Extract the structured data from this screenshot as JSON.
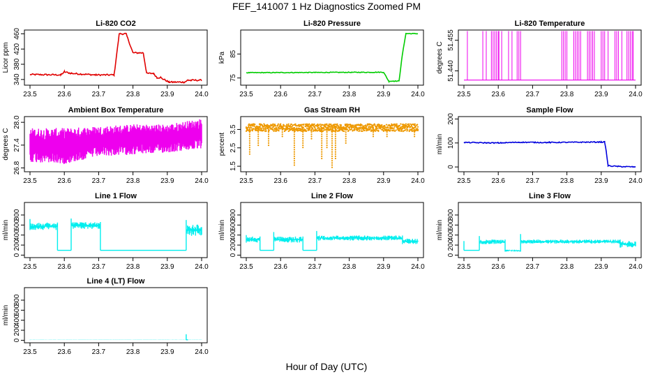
{
  "figure": {
    "title": "FEF_141007  1 Hz Diagnostics Zoomed PM",
    "xlabel": "Hour of Day (UTC)"
  },
  "chart_data": [
    {
      "type": "line",
      "title": "Li-820 CO2",
      "ylabel": "Licor ppm",
      "color": "#e00000",
      "xlim": [
        23.5,
        24.0
      ],
      "ylim": [
        325,
        470
      ],
      "xticks": [
        "23.5",
        "23.6",
        "23.7",
        "23.8",
        "23.9",
        "24.0"
      ],
      "yticks": [
        "340",
        "380",
        "420",
        "460"
      ],
      "style": "step",
      "noise": 2,
      "x": [
        23.5,
        23.59,
        23.6,
        23.62,
        23.69,
        23.745,
        23.76,
        23.78,
        23.8,
        23.83,
        23.84,
        23.86,
        23.87,
        23.88,
        23.905,
        23.95,
        23.96,
        23.97,
        24.0
      ],
      "y": [
        353,
        352,
        360,
        356,
        352,
        352,
        460,
        460,
        410,
        410,
        356,
        356,
        345,
        345,
        333,
        333,
        338,
        338,
        338
      ]
    },
    {
      "type": "line",
      "title": "Li-820 Pressure",
      "ylabel": "kPa",
      "color": "#00cc00",
      "xlim": [
        23.5,
        24.0
      ],
      "ylim": [
        72,
        95
      ],
      "xticks": [
        "23.5",
        "23.6",
        "23.7",
        "23.8",
        "23.9",
        "24.0"
      ],
      "yticks": [
        "75",
        "85"
      ],
      "style": "step",
      "noise": 0.15,
      "x": [
        23.5,
        23.7,
        23.9,
        23.915,
        23.93,
        23.945,
        23.955,
        23.965,
        24.0
      ],
      "y": [
        77.2,
        77.3,
        77.4,
        73.7,
        73.7,
        73.7,
        85.0,
        93.5,
        93.5
      ]
    },
    {
      "type": "line",
      "title": "Li-820 Temperature",
      "ylabel": "degrees C",
      "color": "#ee00ee",
      "xlim": [
        23.5,
        24.0
      ],
      "ylim": [
        51.433,
        51.46
      ],
      "xticks": [
        "23.5",
        "23.6",
        "23.7",
        "23.8",
        "23.9",
        "24.0"
      ],
      "yticks": [
        "51.440",
        "51.455"
      ],
      "style": "binary",
      "low": 51.4355,
      "high": 51.4595,
      "x": [
        23.51,
        23.555,
        23.565,
        23.58,
        23.585,
        23.59,
        23.595,
        23.6,
        23.602,
        23.61,
        23.63,
        23.64,
        23.655,
        23.66,
        23.665,
        23.785,
        23.79,
        23.795,
        23.8,
        23.82,
        23.825,
        23.83,
        23.835,
        23.84,
        23.86,
        23.865,
        23.87,
        23.875,
        23.88,
        23.9,
        23.905,
        23.91,
        23.92,
        23.94,
        23.945,
        23.95,
        23.96,
        23.975,
        23.98,
        23.985,
        23.99,
        23.993
      ]
    },
    {
      "type": "line",
      "title": "Ambient Box Temperature",
      "ylabel": "degrees C",
      "color": "#ee00ee",
      "xlim": [
        23.5,
        24.0
      ],
      "ylim": [
        26.7,
        28.15
      ],
      "xticks": [
        "23.5",
        "23.6",
        "23.7",
        "23.8",
        "23.9",
        "24.0"
      ],
      "yticks": [
        "26.8",
        "27.4",
        "28.0"
      ],
      "style": "band",
      "x": [
        23.5,
        23.6,
        23.7,
        23.8,
        23.9,
        24.0
      ],
      "ymin": [
        26.95,
        26.9,
        27.1,
        27.15,
        27.2,
        27.3
      ],
      "ymax": [
        27.85,
        27.85,
        27.9,
        27.95,
        27.95,
        28.1
      ]
    },
    {
      "type": "scatter",
      "title": "Gas Stream RH",
      "ylabel": "percent",
      "color": "#ee9900",
      "xlim": [
        23.5,
        24.0
      ],
      "ylim": [
        1.2,
        4.2
      ],
      "xticks": [
        "23.5",
        "23.6",
        "23.7",
        "23.8",
        "23.9",
        "24.0"
      ],
      "yticks": [
        "1.5",
        "2.5",
        "3.5"
      ],
      "style": "dots",
      "base": 3.6,
      "spread": 0.2,
      "dips_x": [
        23.51,
        23.535,
        23.565,
        23.605,
        23.64,
        23.665,
        23.69,
        23.72,
        23.735,
        23.75,
        23.76,
        23.79,
        23.87,
        23.91,
        23.99
      ],
      "dips_y": [
        2.1,
        2.6,
        2.6,
        3.1,
        1.5,
        2.4,
        2.9,
        1.8,
        2.5,
        1.4,
        1.8,
        2.7,
        3.0,
        3.0,
        3.0
      ]
    },
    {
      "type": "line",
      "title": "Sample Flow",
      "ylabel": "ml/min",
      "color": "#0000dd",
      "xlim": [
        23.5,
        24.0
      ],
      "ylim": [
        -20,
        210
      ],
      "xticks": [
        "23.5",
        "23.6",
        "23.7",
        "23.8",
        "23.9",
        "24.0"
      ],
      "yticks": [
        "0",
        "100",
        "200"
      ],
      "style": "step",
      "noise": 2,
      "x": [
        23.5,
        23.6,
        23.66,
        23.75,
        23.9,
        23.91,
        23.915,
        23.92,
        23.95,
        24.0
      ],
      "y": [
        102,
        100,
        103,
        102,
        104,
        104,
        60,
        5,
        2,
        0
      ]
    },
    {
      "type": "line",
      "title": "Line 1 Flow",
      "ylabel": "ml/min",
      "color": "#00eeee",
      "xlim": [
        23.5,
        24.0
      ],
      "ylim": [
        -50,
        1050
      ],
      "xticks": [
        "23.5",
        "23.6",
        "23.7",
        "23.8",
        "23.9",
        "24.0"
      ],
      "yticks": [
        "0",
        "200",
        "400",
        "600",
        "800"
      ],
      "style": "segments",
      "segments": [
        {
          "x0": 23.5,
          "x1": 23.58,
          "lo": 500,
          "hi": 650,
          "spike": 720
        },
        {
          "x0": 23.58,
          "x1": 23.62,
          "lo": 95,
          "hi": 95,
          "spike": 95
        },
        {
          "x0": 23.62,
          "x1": 23.705,
          "lo": 520,
          "hi": 660,
          "spike": 730
        },
        {
          "x0": 23.705,
          "x1": 23.955,
          "lo": 95,
          "hi": 95,
          "spike": 95
        },
        {
          "x0": 23.955,
          "x1": 24.0,
          "lo": 380,
          "hi": 620,
          "spike": 700
        }
      ]
    },
    {
      "type": "line",
      "title": "Line 2 Flow",
      "ylabel": "ml/min",
      "color": "#00eeee",
      "xlim": [
        23.5,
        24.0
      ],
      "ylim": [
        -50,
        1050
      ],
      "xticks": [
        "23.5",
        "23.6",
        "23.7",
        "23.8",
        "23.9",
        "24.0"
      ],
      "yticks": [
        "0",
        "200",
        "400",
        "600",
        "800"
      ],
      "style": "segments",
      "segments": [
        {
          "x0": 23.5,
          "x1": 23.54,
          "lo": 250,
          "hi": 370,
          "spike": 400
        },
        {
          "x0": 23.54,
          "x1": 23.58,
          "lo": 95,
          "hi": 95,
          "spike": 95
        },
        {
          "x0": 23.58,
          "x1": 23.665,
          "lo": 250,
          "hi": 370,
          "spike": 460
        },
        {
          "x0": 23.665,
          "x1": 23.705,
          "lo": 95,
          "hi": 95,
          "spike": 95
        },
        {
          "x0": 23.705,
          "x1": 23.955,
          "lo": 290,
          "hi": 390,
          "spike": 480
        },
        {
          "x0": 23.955,
          "x1": 24.0,
          "lo": 220,
          "hi": 330,
          "spike": 350
        }
      ]
    },
    {
      "type": "line",
      "title": "Line 3 Flow",
      "ylabel": "ml/min",
      "color": "#00eeee",
      "xlim": [
        23.5,
        24.0
      ],
      "ylim": [
        -50,
        1050
      ],
      "xticks": [
        "23.5",
        "23.6",
        "23.7",
        "23.8",
        "23.9",
        "24.0"
      ],
      "yticks": [
        "0",
        "200",
        "400",
        "600",
        "800"
      ],
      "style": "segments",
      "segments": [
        {
          "x0": 23.5,
          "x1": 23.545,
          "lo": 95,
          "hi": 95,
          "spike": 280
        },
        {
          "x0": 23.545,
          "x1": 23.62,
          "lo": 220,
          "hi": 310,
          "spike": 380
        },
        {
          "x0": 23.62,
          "x1": 23.665,
          "lo": 70,
          "hi": 110,
          "spike": 180
        },
        {
          "x0": 23.665,
          "x1": 23.955,
          "lo": 230,
          "hi": 310,
          "spike": 420
        },
        {
          "x0": 23.955,
          "x1": 24.0,
          "lo": 150,
          "hi": 280,
          "spike": 300
        }
      ]
    },
    {
      "type": "line",
      "title": "Line 4 (LT) Flow",
      "ylabel": "ml/min",
      "color": "#00eeee",
      "xlim": [
        23.5,
        24.0
      ],
      "ylim": [
        -50,
        1050
      ],
      "xticks": [
        "23.5",
        "23.6",
        "23.7",
        "23.8",
        "23.9",
        "24.0"
      ],
      "yticks": [
        "0",
        "200",
        "400",
        "600",
        "800"
      ],
      "style": "segments",
      "segments": [
        {
          "x0": 23.5,
          "x1": 23.955,
          "lo": 5,
          "hi": 10,
          "spike": 10
        },
        {
          "x0": 23.955,
          "x1": 23.96,
          "lo": 10,
          "hi": 10,
          "spike": 120
        },
        {
          "x0": 23.96,
          "x1": 24.0,
          "lo": 5,
          "hi": 10,
          "spike": 10
        }
      ]
    }
  ]
}
